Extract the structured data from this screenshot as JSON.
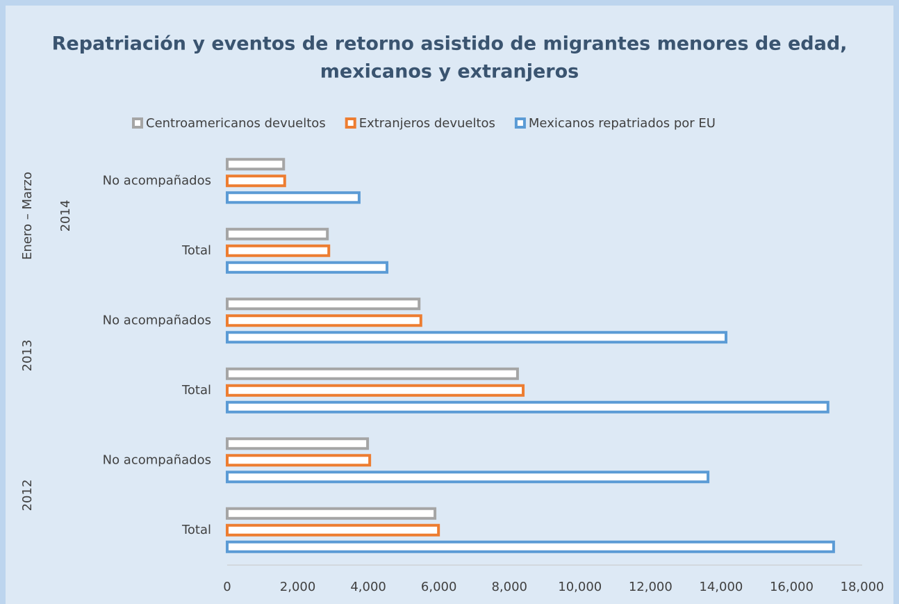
{
  "chart_data": {
    "type": "hbar",
    "title": [
      "Repatriación y eventos de retorno asistido de migrantes menores de edad,",
      "mexicanos y extranjeros"
    ],
    "categories": [
      "No acompañados",
      "Total",
      "No acompañados",
      "Total",
      "No acompañados",
      "Total"
    ],
    "groups": [
      {
        "labels": [
          "Enero – Marzo",
          "2014"
        ]
      },
      {
        "labels": [
          "2013"
        ]
      },
      {
        "labels": [
          "2012"
        ]
      }
    ],
    "series": [
      {
        "name": "Centroamericanos devueltos",
        "color": "#a5a5a5",
        "values": [
          1600,
          2840,
          5440,
          8230,
          3980,
          5890
        ]
      },
      {
        "name": "Extranjeros devueltos",
        "color": "#ed7d31",
        "values": [
          1630,
          2880,
          5490,
          8390,
          4040,
          5990
        ]
      },
      {
        "name": "Mexicanos repatriados por EU",
        "color": "#5b9bd5",
        "values": [
          3740,
          4530,
          14140,
          17030,
          13630,
          17190
        ]
      }
    ],
    "xlim": [
      0,
      18000
    ],
    "xticks": [
      0,
      {
        "value": 2000,
        "label": "2,000"
      },
      {
        "value": 4000,
        "label": "4,000"
      },
      {
        "value": 6000,
        "label": "6,000"
      },
      {
        "value": 8000,
        "label": "8,000"
      },
      {
        "value": 10000,
        "label": "10,000"
      },
      {
        "value": 12000,
        "label": "12,000"
      },
      {
        "value": 14000,
        "label": "14,000"
      },
      {
        "value": 16000,
        "label": "16,000"
      },
      {
        "value": 18000,
        "label": "18,000"
      }
    ],
    "legend": "top"
  }
}
